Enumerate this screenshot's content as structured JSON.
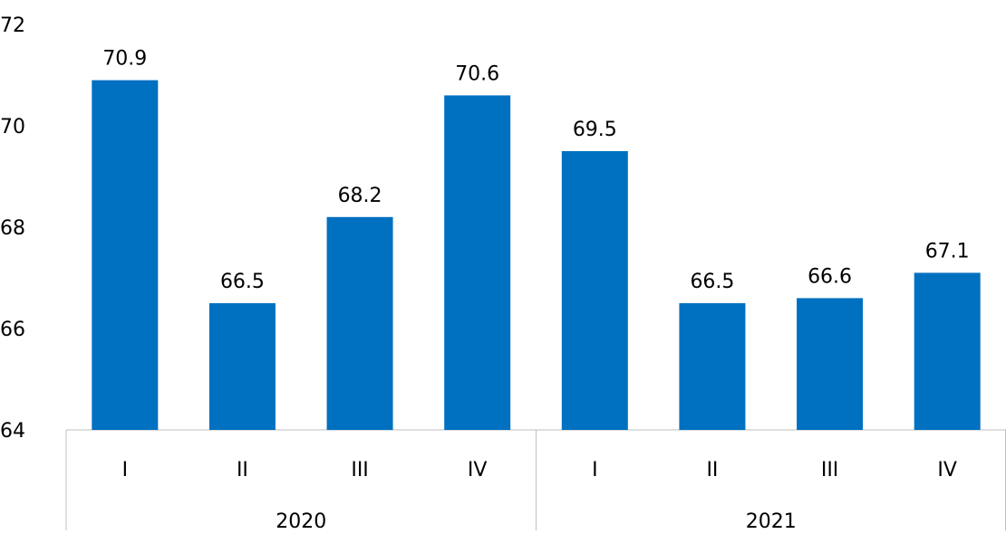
{
  "chart_data": {
    "type": "bar",
    "categories": [
      "I",
      "II",
      "III",
      "IV",
      "I",
      "II",
      "III",
      "IV"
    ],
    "groups": [
      {
        "label": "2020",
        "count": 4
      },
      {
        "label": "2021",
        "count": 4
      }
    ],
    "series": [
      {
        "values": [
          70.9,
          66.5,
          68.2,
          70.6,
          69.5,
          66.5,
          66.6,
          67.1
        ],
        "color": "#0070C0"
      }
    ],
    "data_labels": [
      "70.9",
      "66.5",
      "68.2",
      "70.6",
      "69.5",
      "66.5",
      "66.6",
      "67.1"
    ],
    "yticks": [
      "64",
      "66",
      "68",
      "70",
      "72"
    ],
    "ylim": [
      64,
      72
    ],
    "title": "",
    "xlabel": "",
    "ylabel": "",
    "grid": false,
    "legend": "none"
  }
}
